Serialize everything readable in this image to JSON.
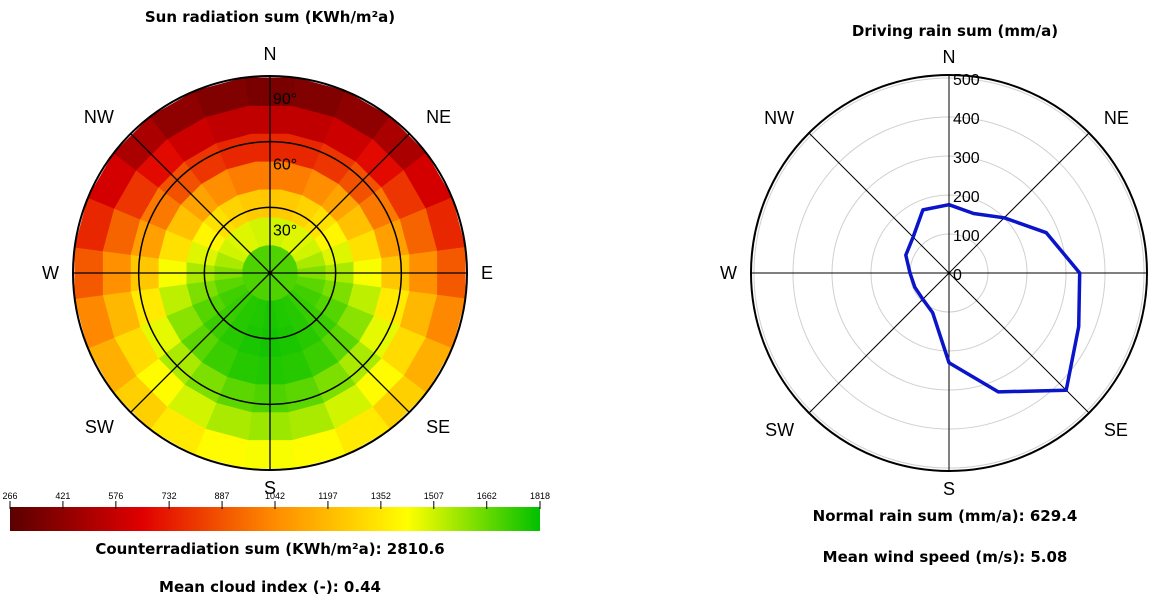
{
  "chart_data": [
    {
      "type": "heatmap",
      "title": "Sun radiation sum (KWh/m²a)",
      "directions": [
        "N",
        "NE",
        "E",
        "SE",
        "S",
        "SW",
        "W",
        "NW"
      ],
      "elevation_labels": [
        "30°",
        "60°",
        "90°"
      ],
      "colorbar": {
        "ticks": [
          266,
          421,
          576,
          732,
          887,
          1042,
          1197,
          1352,
          1507,
          1662,
          1818
        ],
        "min": 266,
        "max": 1818,
        "colors": [
          "#5a0000",
          "#e00000",
          "#ff8c00",
          "#ffff00",
          "#00c000"
        ]
      },
      "azimuth_sectors": 24,
      "ring_count": 7,
      "values_by_ring_from_center": [
        [
          1700,
          1700,
          1700,
          1700,
          1700,
          1700,
          1700,
          1700,
          1700,
          1700,
          1700,
          1700,
          1700,
          1700,
          1700,
          1700,
          1700,
          1700,
          1700,
          1700,
          1700,
          1700,
          1700,
          1700
        ],
        [
          1500,
          1500,
          1480,
          1480,
          1500,
          1560,
          1620,
          1680,
          1720,
          1740,
          1760,
          1770,
          1780,
          1770,
          1760,
          1740,
          1720,
          1680,
          1620,
          1560,
          1500,
          1480,
          1480,
          1500
        ],
        [
          1240,
          1250,
          1280,
          1330,
          1400,
          1480,
          1560,
          1630,
          1690,
          1730,
          1760,
          1780,
          1790,
          1780,
          1760,
          1730,
          1690,
          1630,
          1560,
          1480,
          1400,
          1330,
          1280,
          1250
        ],
        [
          1000,
          1000,
          1050,
          1120,
          1220,
          1330,
          1440,
          1530,
          1610,
          1680,
          1730,
          1760,
          1770,
          1760,
          1730,
          1680,
          1610,
          1530,
          1440,
          1330,
          1220,
          1120,
          1050,
          1000
        ],
        [
          760,
          760,
          800,
          880,
          990,
          1110,
          1240,
          1360,
          1470,
          1560,
          1630,
          1680,
          1700,
          1680,
          1630,
          1560,
          1470,
          1360,
          1240,
          1110,
          990,
          880,
          800,
          760
        ],
        [
          560,
          560,
          600,
          680,
          800,
          930,
          1060,
          1190,
          1310,
          1420,
          1500,
          1560,
          1580,
          1560,
          1500,
          1420,
          1310,
          1190,
          1060,
          930,
          800,
          680,
          600,
          560
        ],
        [
          360,
          380,
          420,
          500,
          620,
          760,
          900,
          1030,
          1160,
          1270,
          1360,
          1420,
          1440,
          1420,
          1360,
          1270,
          1160,
          1030,
          900,
          760,
          620,
          500,
          420,
          380
        ]
      ],
      "captions": {
        "counter": "Counterradiation sum (KWh/m²a): 2810.6",
        "cloud": "Mean cloud index (-): 0.44"
      }
    },
    {
      "type": "line",
      "subtype": "polar",
      "title": "Driving rain sum (mm/a)",
      "directions": [
        "N",
        "NE",
        "E",
        "SE",
        "S",
        "SW",
        "W",
        "NW"
      ],
      "radial_ticks": [
        0,
        100,
        200,
        300,
        400,
        500
      ],
      "rmax": 500,
      "series": [
        {
          "color": "#0a14c8",
          "angles_deg": [
            0,
            22.5,
            45,
            67.5,
            90,
            112.5,
            135,
            157.5,
            180,
            202.5,
            225,
            247.5,
            270,
            292.5,
            315,
            337.5
          ],
          "values": [
            175,
            165,
            200,
            270,
            335,
            360,
            425,
            330,
            230,
            110,
            95,
            95,
            100,
            120,
            130,
            175
          ]
        }
      ],
      "captions": {
        "rain": "Normal rain sum (mm/a): 629.4",
        "wind": "Mean wind speed (m/s): 5.08"
      }
    }
  ]
}
